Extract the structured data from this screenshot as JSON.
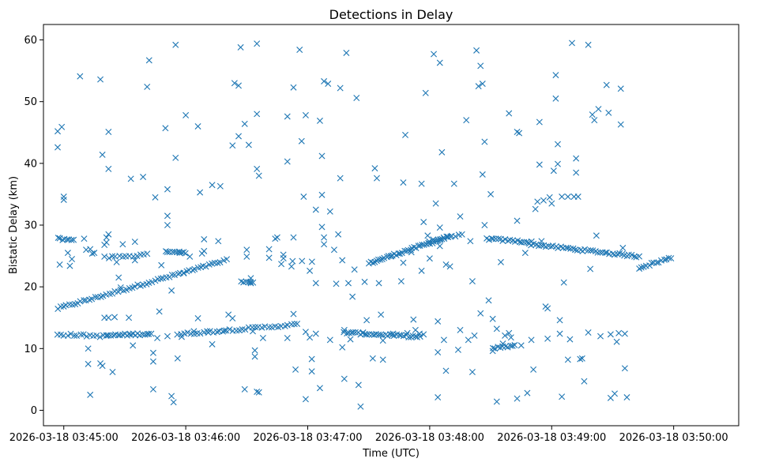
{
  "chart_data": {
    "type": "scatter",
    "title": "Detections in Delay",
    "xlabel": "Time (UTC)",
    "ylabel": "Bistatic Delay (km)",
    "x_unit": "seconds after 2026-03-18 03:44:00",
    "xlim": [
      50,
      392
    ],
    "ylim": [
      -2.5,
      62.5
    ],
    "x_ticks": [
      {
        "value": 60,
        "label": "2026-03-18 03:45:00"
      },
      {
        "value": 120,
        "label": "2026-03-18 03:46:00"
      },
      {
        "value": 180,
        "label": "2026-03-18 03:47:00"
      },
      {
        "value": 240,
        "label": "2026-03-18 03:48:00"
      },
      {
        "value": 300,
        "label": "2026-03-18 03:49:00"
      },
      {
        "value": 360,
        "label": "2026-03-18 03:50:00"
      }
    ],
    "y_ticks": [
      {
        "value": 0,
        "label": "0"
      },
      {
        "value": 10,
        "label": "10"
      },
      {
        "value": 20,
        "label": "20"
      },
      {
        "value": 30,
        "label": "30"
      },
      {
        "value": 40,
        "label": "40"
      },
      {
        "value": 50,
        "label": "50"
      },
      {
        "value": 60,
        "label": "60"
      }
    ],
    "marker": "x",
    "color": "#1f77b4",
    "grid": false,
    "legend": false,
    "tracks": [
      {
        "x_start": 57,
        "x_end": 140,
        "y_start": 16.5,
        "y_end": 24.3,
        "count": 60
      },
      {
        "x_start": 168,
        "x_end": 182,
        "y_start": 24.5,
        "y_end": 24.0,
        "count": 4
      },
      {
        "x_start": 210,
        "x_end": 250,
        "y_start": 23.8,
        "y_end": 28.2,
        "count": 42
      },
      {
        "x_start": 240,
        "x_end": 256,
        "y_start": 27.4,
        "y_end": 28.4,
        "count": 10
      },
      {
        "x_start": 268,
        "x_end": 290,
        "y_start": 27.8,
        "y_end": 27.2,
        "count": 20
      },
      {
        "x_start": 290,
        "x_end": 343,
        "y_start": 26.9,
        "y_end": 24.9,
        "count": 45
      },
      {
        "x_start": 343,
        "x_end": 359,
        "y_start": 23.1,
        "y_end": 24.7,
        "count": 14
      },
      {
        "x_start": 57,
        "x_end": 81,
        "y_start": 12.3,
        "y_end": 12.0,
        "count": 16
      },
      {
        "x_start": 81,
        "x_end": 102,
        "y_start": 12.1,
        "y_end": 12.4,
        "count": 20
      },
      {
        "x_start": 116,
        "x_end": 175,
        "y_start": 12.3,
        "y_end": 13.9,
        "count": 38
      },
      {
        "x_start": 198,
        "x_end": 235,
        "y_start": 12.6,
        "y_end": 11.9,
        "count": 34
      },
      {
        "x_start": 271,
        "x_end": 282,
        "y_start": 10.0,
        "y_end": 10.5,
        "count": 10
      },
      {
        "x_start": 57,
        "x_end": 65,
        "y_start": 27.8,
        "y_end": 27.6,
        "count": 8
      },
      {
        "x_start": 82,
        "x_end": 101,
        "y_start": 24.8,
        "y_end": 25.2,
        "count": 12
      },
      {
        "x_start": 110,
        "x_end": 120,
        "y_start": 25.8,
        "y_end": 25.6,
        "count": 10
      },
      {
        "x_start": 147,
        "x_end": 153,
        "y_start": 20.8,
        "y_end": 20.6,
        "count": 6
      }
    ],
    "scatter": [
      [
        57,
        45.2
      ],
      [
        59,
        45.9
      ],
      [
        57,
        42.6
      ],
      [
        60,
        34.6
      ],
      [
        60,
        34.1
      ],
      [
        58,
        23.6
      ],
      [
        63,
        23.4
      ],
      [
        62,
        25.5
      ],
      [
        64,
        24.5
      ],
      [
        68,
        54.1
      ],
      [
        70,
        27.8
      ],
      [
        71,
        26.0
      ],
      [
        73,
        26.1
      ],
      [
        72,
        10.0
      ],
      [
        72,
        7.5
      ],
      [
        73,
        2.5
      ],
      [
        74,
        25.4
      ],
      [
        75,
        25.5
      ],
      [
        78,
        53.6
      ],
      [
        79,
        41.4
      ],
      [
        82,
        39.1
      ],
      [
        82,
        45.1
      ],
      [
        80,
        26.8
      ],
      [
        80,
        24.9
      ],
      [
        81,
        27.2
      ],
      [
        81,
        28.0
      ],
      [
        82,
        28.5
      ],
      [
        78,
        7.6
      ],
      [
        79,
        7.2
      ],
      [
        84,
        6.2
      ],
      [
        80,
        15.0
      ],
      [
        82,
        15.0
      ],
      [
        85,
        15.1
      ],
      [
        86,
        24.0
      ],
      [
        87,
        21.5
      ],
      [
        88,
        19.9
      ],
      [
        89,
        26.9
      ],
      [
        93,
        37.5
      ],
      [
        95,
        24.3
      ],
      [
        95,
        27.3
      ],
      [
        94,
        10.5
      ],
      [
        92,
        15.0
      ],
      [
        99,
        37.8
      ],
      [
        101,
        52.4
      ],
      [
        102,
        56.7
      ],
      [
        105,
        34.5
      ],
      [
        104,
        9.3
      ],
      [
        104,
        7.9
      ],
      [
        104,
        3.4
      ],
      [
        103,
        12.4
      ],
      [
        106,
        11.7
      ],
      [
        107,
        16.0
      ],
      [
        108,
        23.5
      ],
      [
        110,
        45.7
      ],
      [
        111,
        35.8
      ],
      [
        111,
        31.5
      ],
      [
        111,
        30.0
      ],
      [
        111,
        12.0
      ],
      [
        113,
        2.3
      ],
      [
        115,
        59.2
      ],
      [
        115,
        40.9
      ],
      [
        114,
        1.3
      ],
      [
        116,
        8.4
      ],
      [
        113,
        19.4
      ],
      [
        117,
        25.5
      ],
      [
        118,
        11.9
      ],
      [
        119,
        22.2
      ],
      [
        120,
        47.8
      ],
      [
        122,
        24.9
      ],
      [
        124,
        12.8
      ],
      [
        126,
        46.0
      ],
      [
        127,
        35.3
      ],
      [
        126,
        14.9
      ],
      [
        129,
        27.7
      ],
      [
        129,
        25.8
      ],
      [
        128,
        25.4
      ],
      [
        131,
        12.6
      ],
      [
        133,
        36.5
      ],
      [
        133,
        10.7
      ],
      [
        136,
        27.4
      ],
      [
        137,
        36.3
      ],
      [
        139,
        12.9
      ],
      [
        141,
        15.5
      ],
      [
        143,
        14.9
      ],
      [
        143,
        42.9
      ],
      [
        144,
        53.0
      ],
      [
        146,
        44.4
      ],
      [
        146,
        52.6
      ],
      [
        147,
        58.8
      ],
      [
        149,
        46.4
      ],
      [
        149,
        3.4
      ],
      [
        150,
        26.0
      ],
      [
        150,
        24.9
      ],
      [
        151,
        43.0
      ],
      [
        152,
        20.6
      ],
      [
        152,
        21.4
      ],
      [
        153,
        12.8
      ],
      [
        154,
        9.7
      ],
      [
        154,
        8.7
      ],
      [
        155,
        59.4
      ],
      [
        155,
        48.0
      ],
      [
        155,
        39.1
      ],
      [
        156,
        38.0
      ],
      [
        155,
        3.0
      ],
      [
        156,
        2.9
      ],
      [
        158,
        11.7
      ],
      [
        161,
        26.1
      ],
      [
        161,
        24.7
      ],
      [
        164,
        27.8
      ],
      [
        165,
        28.0
      ],
      [
        167,
        23.7
      ],
      [
        168,
        25.2
      ],
      [
        170,
        47.6
      ],
      [
        170,
        40.3
      ],
      [
        170,
        11.7
      ],
      [
        172,
        23.3
      ],
      [
        173,
        52.3
      ],
      [
        173,
        28.0
      ],
      [
        173,
        15.6
      ],
      [
        174,
        6.6
      ],
      [
        176,
        58.4
      ],
      [
        177,
        43.6
      ],
      [
        178,
        34.6
      ],
      [
        179,
        47.8
      ],
      [
        179,
        12.7
      ],
      [
        179,
        1.8
      ],
      [
        181,
        22.6
      ],
      [
        181,
        11.8
      ],
      [
        182,
        6.3
      ],
      [
        182,
        8.3
      ],
      [
        184,
        32.5
      ],
      [
        184,
        20.6
      ],
      [
        184,
        12.4
      ],
      [
        186,
        46.9
      ],
      [
        186,
        3.6
      ],
      [
        187,
        41.2
      ],
      [
        187,
        34.9
      ],
      [
        187,
        29.7
      ],
      [
        188,
        28.0
      ],
      [
        188,
        26.9
      ],
      [
        188,
        53.3
      ],
      [
        190,
        52.9
      ],
      [
        191,
        32.2
      ],
      [
        191,
        11.4
      ],
      [
        193,
        26.0
      ],
      [
        194,
        20.5
      ],
      [
        195,
        28.5
      ],
      [
        196,
        52.2
      ],
      [
        196,
        37.6
      ],
      [
        197,
        24.3
      ],
      [
        197,
        10.2
      ],
      [
        198,
        13.0
      ],
      [
        198,
        5.1
      ],
      [
        199,
        57.9
      ],
      [
        200,
        20.6
      ],
      [
        201,
        11.5
      ],
      [
        202,
        18.4
      ],
      [
        203,
        22.8
      ],
      [
        204,
        50.6
      ],
      [
        205,
        4.1
      ],
      [
        206,
        0.6
      ],
      [
        207,
        12.5
      ],
      [
        208,
        20.8
      ],
      [
        209,
        14.6
      ],
      [
        212,
        8.4
      ],
      [
        213,
        39.2
      ],
      [
        214,
        37.6
      ],
      [
        215,
        20.6
      ],
      [
        216,
        15.5
      ],
      [
        217,
        11.3
      ],
      [
        217,
        8.2
      ],
      [
        221,
        25.0
      ],
      [
        222,
        12.4
      ],
      [
        226,
        20.9
      ],
      [
        227,
        23.9
      ],
      [
        227,
        36.9
      ],
      [
        228,
        44.6
      ],
      [
        229,
        12.5
      ],
      [
        231,
        25.6
      ],
      [
        232,
        14.7
      ],
      [
        233,
        13.0
      ],
      [
        235,
        12.4
      ],
      [
        236,
        22.6
      ],
      [
        236,
        36.7
      ],
      [
        237,
        30.5
      ],
      [
        237,
        12.3
      ],
      [
        238,
        51.4
      ],
      [
        239,
        28.3
      ],
      [
        240,
        24.6
      ],
      [
        242,
        57.7
      ],
      [
        243,
        33.5
      ],
      [
        244,
        2.1
      ],
      [
        244,
        14.4
      ],
      [
        244,
        9.4
      ],
      [
        245,
        56.3
      ],
      [
        245,
        26.6
      ],
      [
        245,
        29.6
      ],
      [
        246,
        41.8
      ],
      [
        247,
        11.4
      ],
      [
        248,
        6.4
      ],
      [
        248,
        23.6
      ],
      [
        250,
        23.3
      ],
      [
        252,
        36.7
      ],
      [
        254,
        9.8
      ],
      [
        255,
        13.0
      ],
      [
        255,
        31.4
      ],
      [
        258,
        47.0
      ],
      [
        259,
        11.4
      ],
      [
        260,
        27.4
      ],
      [
        261,
        20.9
      ],
      [
        261,
        6.2
      ],
      [
        262,
        12.1
      ],
      [
        263,
        58.3
      ],
      [
        264,
        52.5
      ],
      [
        265,
        55.8
      ],
      [
        265,
        15.7
      ],
      [
        266,
        52.9
      ],
      [
        266,
        38.2
      ],
      [
        267,
        43.5
      ],
      [
        267,
        30.0
      ],
      [
        269,
        17.8
      ],
      [
        270,
        35.0
      ],
      [
        271,
        14.8
      ],
      [
        271,
        9.6
      ],
      [
        273,
        1.4
      ],
      [
        273,
        13.2
      ],
      [
        275,
        24.0
      ],
      [
        276,
        10.8
      ],
      [
        277,
        12.1
      ],
      [
        279,
        48.1
      ],
      [
        279,
        12.5
      ],
      [
        280,
        11.8
      ],
      [
        283,
        45.1
      ],
      [
        283,
        30.7
      ],
      [
        284,
        44.9
      ],
      [
        283,
        1.9
      ],
      [
        285,
        10.5
      ],
      [
        287,
        25.5
      ],
      [
        288,
        2.8
      ],
      [
        289,
        27.0
      ],
      [
        290,
        11.4
      ],
      [
        291,
        6.6
      ],
      [
        292,
        32.6
      ],
      [
        293,
        33.8
      ],
      [
        294,
        46.7
      ],
      [
        294,
        39.8
      ],
      [
        295,
        27.4
      ],
      [
        296,
        34.0
      ],
      [
        297,
        16.8
      ],
      [
        298,
        16.5
      ],
      [
        298,
        11.6
      ],
      [
        299,
        34.5
      ],
      [
        300,
        33.5
      ],
      [
        301,
        38.8
      ],
      [
        302,
        50.5
      ],
      [
        302,
        54.3
      ],
      [
        303,
        39.9
      ],
      [
        303,
        43.1
      ],
      [
        304,
        14.6
      ],
      [
        304,
        12.4
      ],
      [
        305,
        34.6
      ],
      [
        305,
        2.2
      ],
      [
        306,
        20.7
      ],
      [
        308,
        34.6
      ],
      [
        308,
        8.2
      ],
      [
        309,
        11.5
      ],
      [
        310,
        59.5
      ],
      [
        311,
        34.6
      ],
      [
        312,
        40.8
      ],
      [
        312,
        38.5
      ],
      [
        313,
        34.6
      ],
      [
        314,
        8.3
      ],
      [
        315,
        8.4
      ],
      [
        316,
        4.7
      ],
      [
        318,
        59.2
      ],
      [
        318,
        12.6
      ],
      [
        319,
        22.9
      ],
      [
        320,
        47.9
      ],
      [
        321,
        47.0
      ],
      [
        322,
        28.3
      ],
      [
        323,
        48.8
      ],
      [
        324,
        12.0
      ],
      [
        327,
        52.7
      ],
      [
        328,
        48.2
      ],
      [
        329,
        12.3
      ],
      [
        329,
        2.0
      ],
      [
        331,
        2.7
      ],
      [
        332,
        11.1
      ],
      [
        333,
        12.5
      ],
      [
        334,
        52.1
      ],
      [
        334,
        46.3
      ],
      [
        335,
        26.3
      ],
      [
        336,
        12.4
      ],
      [
        336,
        6.8
      ],
      [
        337,
        2.1
      ]
    ]
  }
}
